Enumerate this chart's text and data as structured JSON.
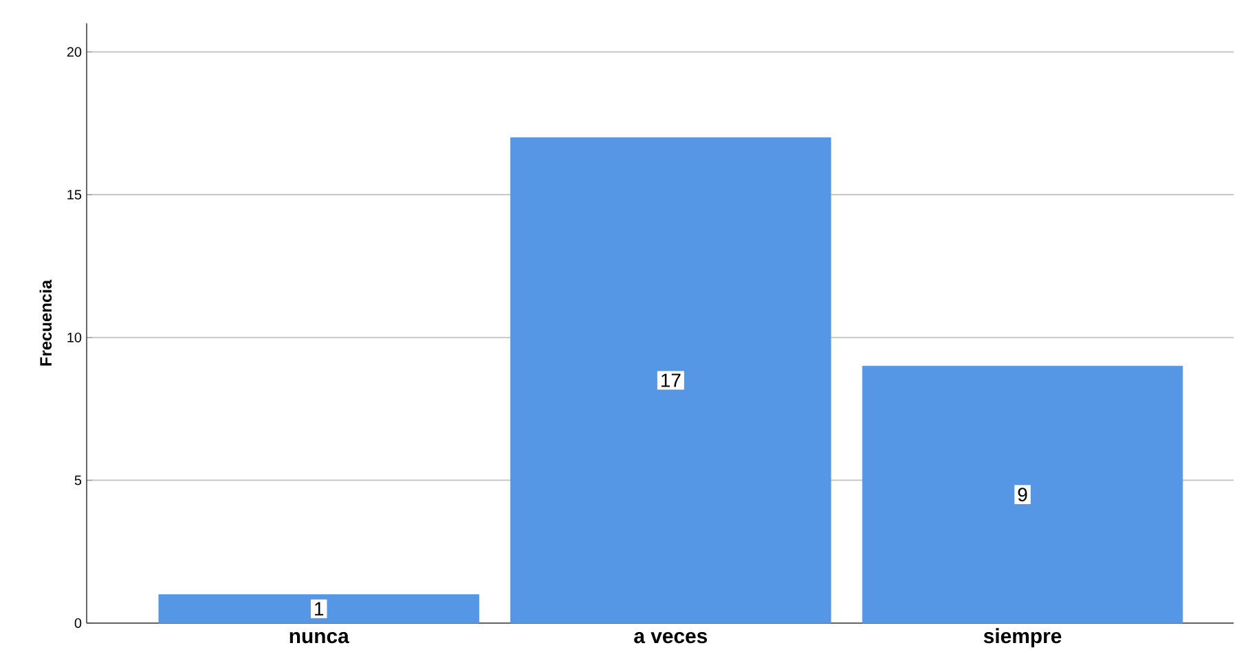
{
  "chart_data": {
    "type": "bar",
    "ylabel": "Frecuencia",
    "categories": [
      "nunca",
      "a veces",
      "siempre"
    ],
    "values": [
      1,
      17,
      9
    ],
    "color": "#5596e5",
    "ylim": [
      0,
      21
    ],
    "yticks": [
      0,
      5,
      10,
      15,
      20
    ],
    "grid": "y",
    "data_labels": true
  }
}
